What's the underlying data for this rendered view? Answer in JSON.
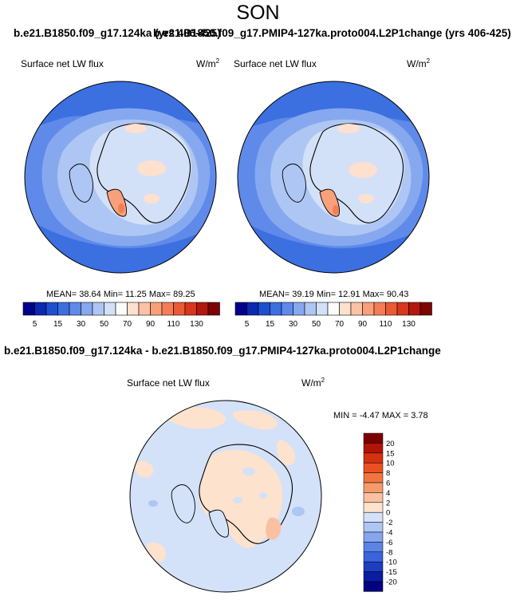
{
  "season": "SON",
  "panels": {
    "left": {
      "title": "b.e21.B1850.f09_g17.124ka (yrs 406-425)",
      "variable": "Surface net LW flux",
      "units_base": "W/m",
      "units_exp": "2",
      "stats": "MEAN=  38.64  Min=  11.25  Max=  89.25"
    },
    "right": {
      "title": "b.e21.B1850.f09_g17.PMIP4-127ka.proto004.L2P1change (yrs 406-425)",
      "variable": "Surface net LW flux",
      "units_base": "W/m",
      "units_exp": "2",
      "stats": "MEAN=  39.19  Min=  12.91  Max=  90.43"
    },
    "diff": {
      "title": "b.e21.B1850.f09_g17.124ka - b.e21.B1850.f09_g17.PMIP4-127ka.proto004.L2P1change",
      "variable": "Surface net LW flux",
      "units_base": "W/m",
      "units_exp": "2",
      "stats": "MIN =  -4.47 MAX =  3.78"
    }
  },
  "colorbar_abs": {
    "labels": [
      "5",
      "15",
      "30",
      "50",
      "70",
      "90",
      "110",
      "130"
    ],
    "colors": [
      "#02028a",
      "#0b28b0",
      "#1e4fd0",
      "#3c6fe0",
      "#5f8ae9",
      "#86a8ee",
      "#aec6f3",
      "#d3e1f8",
      "#fbfbfb",
      "#fde0cd",
      "#fbc3a6",
      "#f8a07a",
      "#f47d55",
      "#ea5a35",
      "#d8361d",
      "#b3170e",
      "#7d0404"
    ]
  },
  "colorbar_diff": {
    "labels": [
      "20",
      "15",
      "10",
      "8",
      "6",
      "4",
      "2",
      "0",
      "-2",
      "-4",
      "-6",
      "-8",
      "-10",
      "-15",
      "-20"
    ],
    "colors": [
      "#7c0000",
      "#b11508",
      "#d3310f",
      "#ea5122",
      "#f2753f",
      "#f59a6a",
      "#f9c19f",
      "#fde2cd",
      "#d3e2f8",
      "#aec6f3",
      "#86a6ee",
      "#5a84e6",
      "#3a63dc",
      "#1c3ec2",
      "#0a1ca0",
      "#020281"
    ]
  }
}
